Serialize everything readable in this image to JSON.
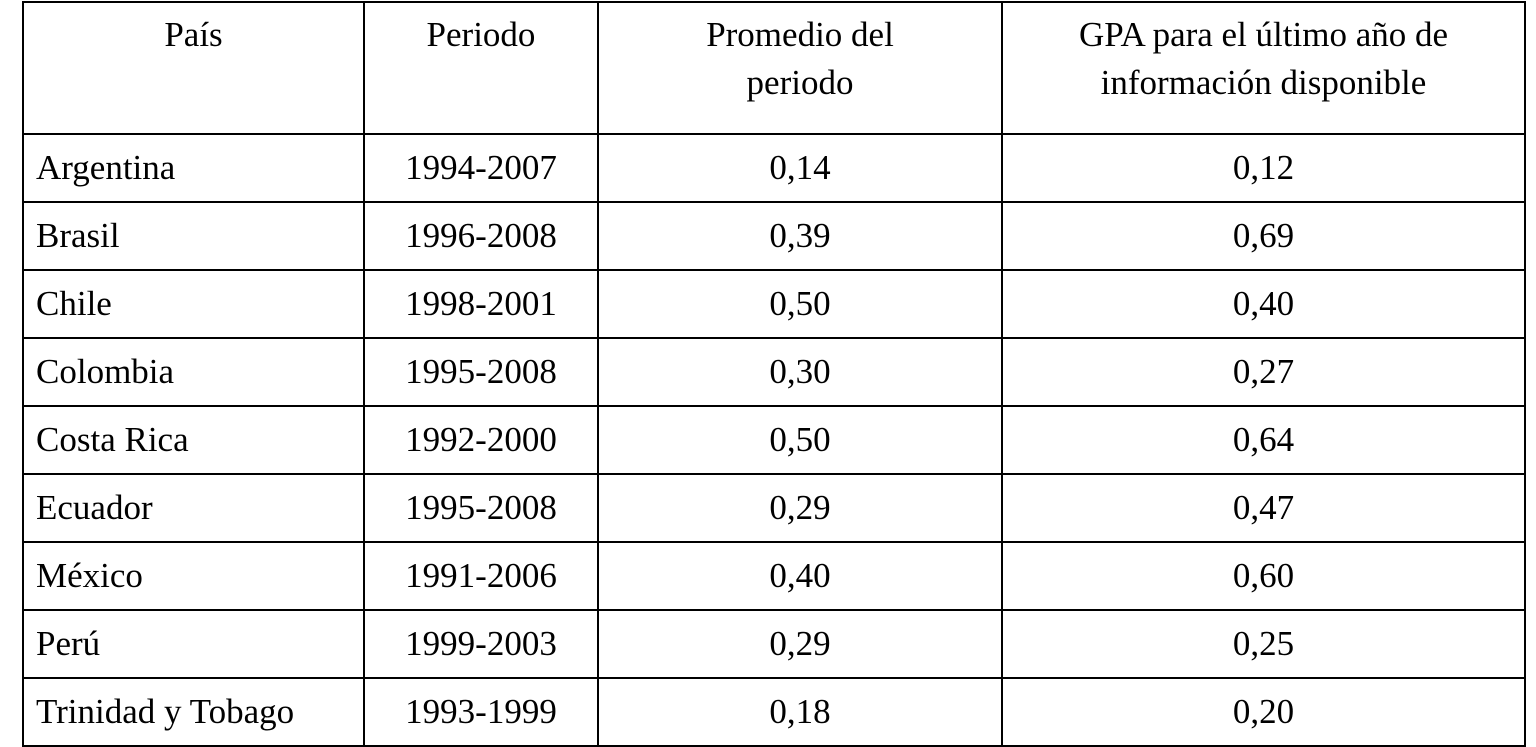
{
  "table": {
    "header": [
      [
        "País"
      ],
      [
        "Periodo"
      ],
      [
        "Promedio del",
        "periodo"
      ],
      [
        "GPA para el último año de",
        "información disponible"
      ]
    ],
    "rows": [
      [
        "Argentina",
        "1994-2007",
        "0,14",
        "0,12"
      ],
      [
        "Brasil",
        "1996-2008",
        "0,39",
        "0,69"
      ],
      [
        "Chile",
        "1998-2001",
        "0,50",
        "0,40"
      ],
      [
        "Colombia",
        "1995-2008",
        "0,30",
        "0,27"
      ],
      [
        "Costa Rica",
        "1992-2000",
        "0,50",
        "0,64"
      ],
      [
        "Ecuador",
        "1995-2008",
        "0,29",
        "0,47"
      ],
      [
        "México",
        "1991-2006",
        "0,40",
        "0,60"
      ],
      [
        "Perú",
        "1999-2003",
        "0,29",
        "0,25"
      ],
      [
        "Trinidad y Tobago",
        "1993-1999",
        "0,18",
        "0,20"
      ]
    ]
  }
}
